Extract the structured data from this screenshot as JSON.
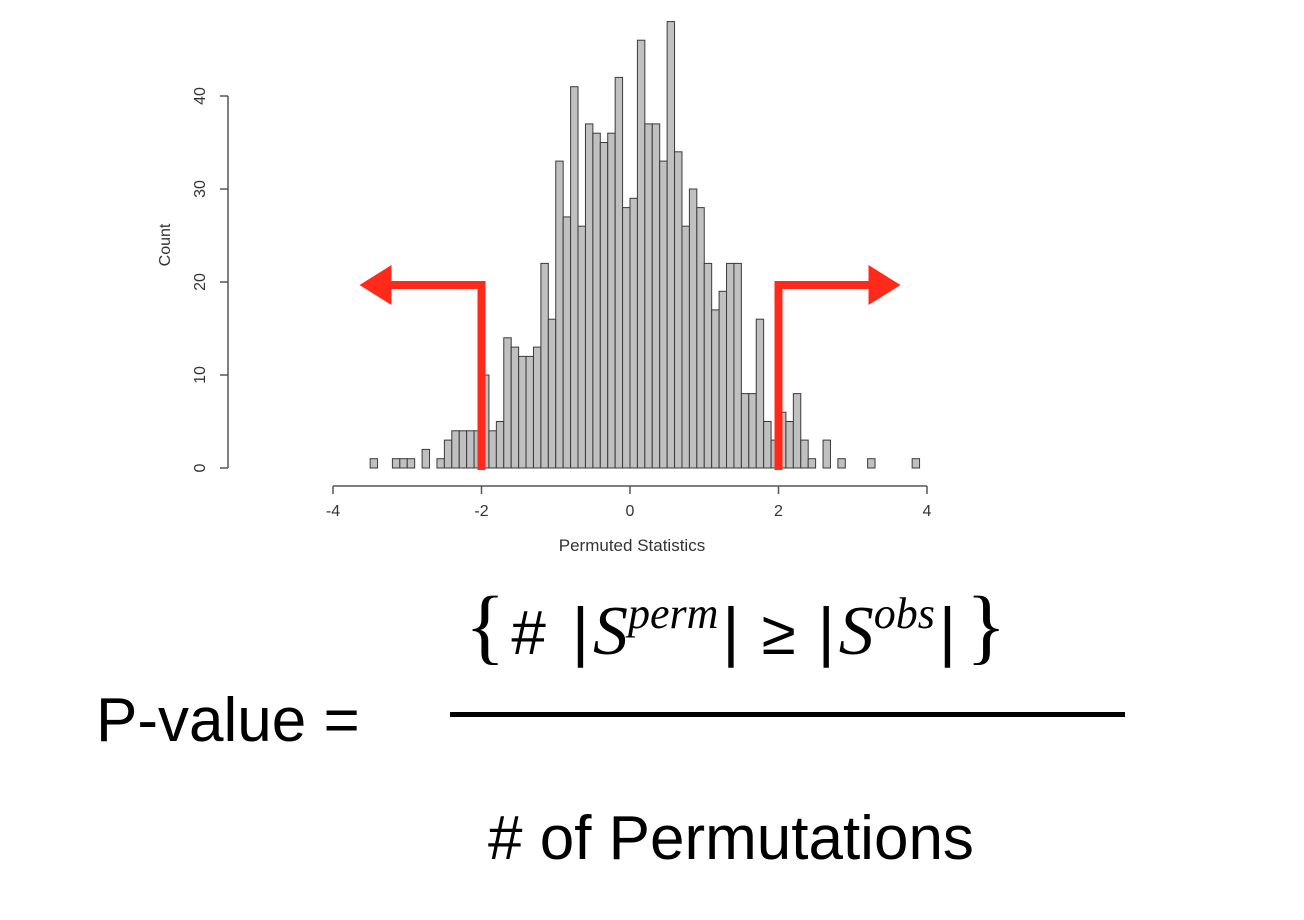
{
  "chart_data": {
    "type": "bar",
    "xlabel": "Permuted Statistics",
    "ylabel": "Count",
    "xlim": [
      -4,
      4
    ],
    "ylim": [
      0,
      48
    ],
    "x_ticks": [
      "-4",
      "-2",
      "0",
      "2",
      "4"
    ],
    "y_ticks": [
      "0",
      "10",
      "20",
      "30",
      "40"
    ],
    "bin_width": 0.1,
    "bins": [
      {
        "x": -3.45,
        "y": 1
      },
      {
        "x": -3.15,
        "y": 1
      },
      {
        "x": -3.05,
        "y": 1
      },
      {
        "x": -2.95,
        "y": 1
      },
      {
        "x": -2.75,
        "y": 2
      },
      {
        "x": -2.55,
        "y": 1
      },
      {
        "x": -2.45,
        "y": 3
      },
      {
        "x": -2.35,
        "y": 4
      },
      {
        "x": -2.25,
        "y": 4
      },
      {
        "x": -2.15,
        "y": 4
      },
      {
        "x": -2.05,
        "y": 4
      },
      {
        "x": -1.95,
        "y": 10
      },
      {
        "x": -1.85,
        "y": 4
      },
      {
        "x": -1.75,
        "y": 5
      },
      {
        "x": -1.65,
        "y": 14
      },
      {
        "x": -1.55,
        "y": 13
      },
      {
        "x": -1.45,
        "y": 12
      },
      {
        "x": -1.35,
        "y": 12
      },
      {
        "x": -1.25,
        "y": 13
      },
      {
        "x": -1.15,
        "y": 22
      },
      {
        "x": -1.05,
        "y": 16
      },
      {
        "x": -0.95,
        "y": 33
      },
      {
        "x": -0.85,
        "y": 27
      },
      {
        "x": -0.75,
        "y": 41
      },
      {
        "x": -0.65,
        "y": 26
      },
      {
        "x": -0.55,
        "y": 37
      },
      {
        "x": -0.45,
        "y": 36
      },
      {
        "x": -0.35,
        "y": 35
      },
      {
        "x": -0.25,
        "y": 36
      },
      {
        "x": -0.15,
        "y": 42
      },
      {
        "x": -0.05,
        "y": 28
      },
      {
        "x": 0.05,
        "y": 29
      },
      {
        "x": 0.15,
        "y": 46
      },
      {
        "x": 0.25,
        "y": 37
      },
      {
        "x": 0.35,
        "y": 37
      },
      {
        "x": 0.45,
        "y": 33
      },
      {
        "x": 0.55,
        "y": 48
      },
      {
        "x": 0.65,
        "y": 34
      },
      {
        "x": 0.75,
        "y": 26
      },
      {
        "x": 0.85,
        "y": 30
      },
      {
        "x": 0.95,
        "y": 28
      },
      {
        "x": 1.05,
        "y": 22
      },
      {
        "x": 1.15,
        "y": 17
      },
      {
        "x": 1.25,
        "y": 19
      },
      {
        "x": 1.35,
        "y": 22
      },
      {
        "x": 1.45,
        "y": 22
      },
      {
        "x": 1.55,
        "y": 8
      },
      {
        "x": 1.65,
        "y": 8
      },
      {
        "x": 1.75,
        "y": 16
      },
      {
        "x": 1.85,
        "y": 5
      },
      {
        "x": 1.95,
        "y": 3
      },
      {
        "x": 2.05,
        "y": 6
      },
      {
        "x": 2.15,
        "y": 5
      },
      {
        "x": 2.25,
        "y": 8
      },
      {
        "x": 2.35,
        "y": 3
      },
      {
        "x": 2.45,
        "y": 1
      },
      {
        "x": 2.65,
        "y": 3
      },
      {
        "x": 2.85,
        "y": 1
      },
      {
        "x": 3.25,
        "y": 1
      },
      {
        "x": 3.85,
        "y": 1
      }
    ],
    "thresholds": [
      -2,
      2
    ],
    "threshold_color": "#ff2a1a",
    "bar_fill": "#c0c0c0",
    "bar_stroke": "#3a3a3a"
  },
  "formula": {
    "lhs": "P-value =",
    "open_brace": "{",
    "hash": "#",
    "bar": "|",
    "S": "S",
    "perm_sup": "perm",
    "geq": "≥",
    "obs_sup": "obs",
    "close_brace": "}",
    "denominator": "# of Permutations"
  }
}
